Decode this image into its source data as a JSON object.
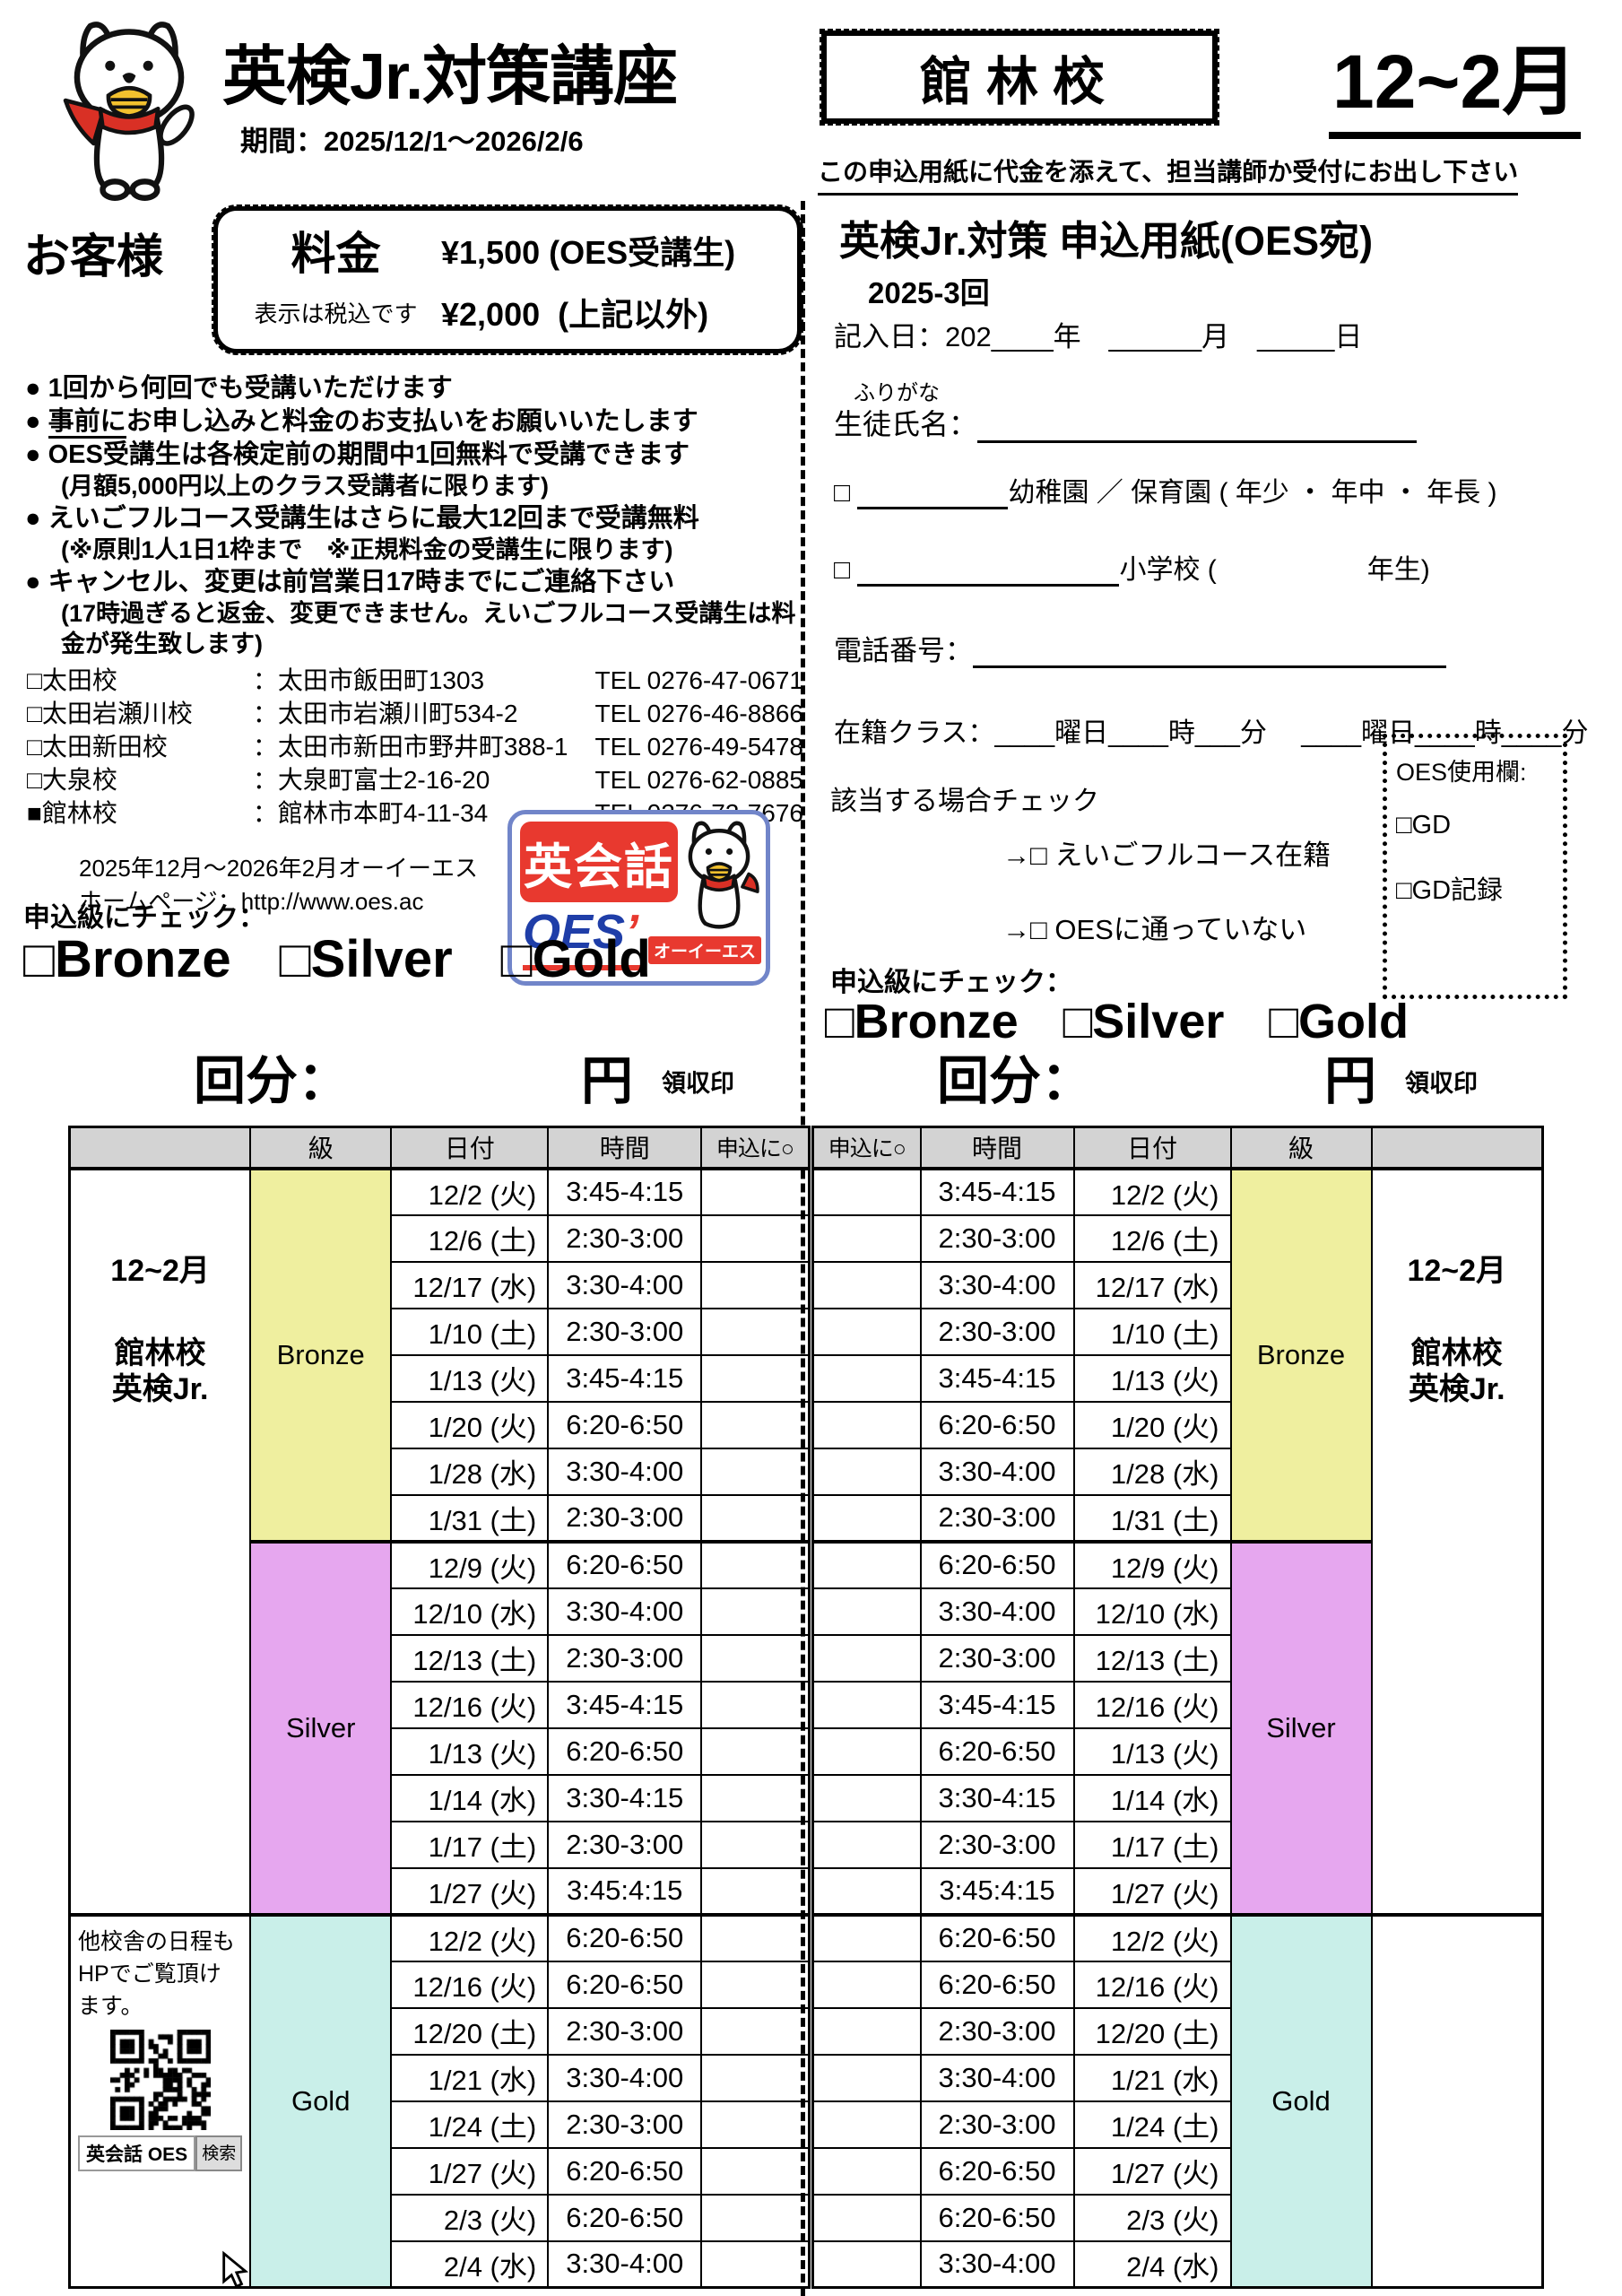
{
  "header": {
    "title": "英検Jr.対策講座",
    "period": "期間：2025/12/1～2026/2/6",
    "school_box": "館林校",
    "months": "12~2月",
    "instruction": "この申込用紙に代金を添えて、担当講師か受付にお出し下さい"
  },
  "customer": {
    "label": "お客様",
    "fee_box": {
      "title": "料金",
      "tax_note": "表示は税込です",
      "rows": [
        {
          "price": "¥1,500",
          "desc": "(OES受講生)"
        },
        {
          "price": "¥2,000",
          "desc": "(上記以外)"
        }
      ]
    },
    "bullet_char": "●",
    "bullets": [
      {
        "u": "",
        "main": "1回から何回でも受講いただけます",
        "sub": ""
      },
      {
        "u": "事前に",
        "main": "お申し込みと料金のお支払いをお願いいたします",
        "sub": ""
      },
      {
        "u": "",
        "main": "OES受講生は各検定前の期間中1回無料で受講できます",
        "sub": "(月額5,000円以上のクラス受講者に限ります)"
      },
      {
        "u": "",
        "main": "えいごフルコース受講生はさらに最大12回まで受講無料",
        "sub": "(※原則1人1日1枠まで　※正規料金の受講生に限ります)"
      },
      {
        "u": "",
        "main": "キャンセル、変更は前営業日17時までにご連絡下さい",
        "sub": "(17時過ぎると返金、変更できません。えいごフルコース受講生は料金が発生致します)"
      }
    ],
    "schools": [
      {
        "box": "□",
        "name": "太田校",
        "addr": "：太田市飯田町1303",
        "tel": "TEL 0276-47-0671"
      },
      {
        "box": "□",
        "name": "太田岩瀬川校",
        "addr": "：太田市岩瀬川町534-2",
        "tel": "TEL 0276-46-8866"
      },
      {
        "box": "□",
        "name": "太田新田校",
        "addr": "：太田市新田市野井町388-1",
        "tel": "TEL 0276-49-5478"
      },
      {
        "box": "□",
        "name": "大泉校",
        "addr": "：大泉町富士2-16-20",
        "tel": "TEL 0276-62-0885"
      },
      {
        "box": "■",
        "name": "館林校",
        "addr": "：館林市本町4-11-34",
        "tel": "TEL 0276-72-7676"
      }
    ],
    "footer_line1": "2025年12月～2026年2月オーイーエス",
    "footer_line2": "ホームページ：http://www.oes.ac",
    "logo": {
      "badge": "英会話",
      "brand": "OES",
      "brand_mark": "’",
      "strip": "オーイーエス"
    },
    "apply_label": "申込級にチェック：",
    "levels": [
      "□Bronze",
      "□Silver",
      "□Gold"
    ]
  },
  "form": {
    "title": "英検Jr.対策 申込用紙(OES宛)",
    "round": "2025-3回",
    "date_line": "記入日：202____年　______月　_____日",
    "furigana": "ふりがな",
    "name_label": "生徒氏名：",
    "kindergarten": {
      "box": "□",
      "label": "幼稚園 ／ 保育園 ( 年少 ・ 年中 ・ 年長 )"
    },
    "elementary": {
      "box": "□",
      "label": "小学校 (",
      "suffix": "年生)"
    },
    "phone_label": "電話番号：",
    "class_line": "在籍クラス：____曜日____時___分　 ____曜日____時____分",
    "applicable": "該当する場合チェック",
    "applicable_items": [
      "→□ えいごフルコース在籍",
      "→□ OESに通っていない"
    ],
    "oes_box": {
      "title": "OES使用欄:",
      "items": [
        "□GD",
        "□GD記録"
      ]
    },
    "apply_label": "申込級にチェック：",
    "levels": [
      "□Bronze",
      "□Silver",
      "□Gold"
    ]
  },
  "schedule": {
    "fee_line": {
      "label": "回分：",
      "unit": "円",
      "stamp": "領収印"
    },
    "headers": {
      "class": "級",
      "date": "日付",
      "time": "時間",
      "apply": "申込に○"
    },
    "side_label": [
      "12~2月",
      "館林校",
      "英検Jr."
    ],
    "gold_note": "他校舎の日程もHPでご覧頂けます。",
    "search": {
      "query": "英会話 OES",
      "button": "検索"
    },
    "sections": [
      {
        "name": "Bronze",
        "color": "#efef9f",
        "rows": [
          {
            "date": "12/2 (火)",
            "time": "3:45-4:15"
          },
          {
            "date": "12/6 (土)",
            "time": "2:30-3:00"
          },
          {
            "date": "12/17 (水)",
            "time": "3:30-4:00"
          },
          {
            "date": "1/10 (土)",
            "time": "2:30-3:00"
          },
          {
            "date": "1/13 (火)",
            "time": "3:45-4:15"
          },
          {
            "date": "1/20 (火)",
            "time": "6:20-6:50"
          },
          {
            "date": "1/28 (水)",
            "time": "3:30-4:00"
          },
          {
            "date": "1/31 (土)",
            "time": "2:30-3:00"
          }
        ]
      },
      {
        "name": "Silver",
        "color": "#e6a7ef",
        "rows": [
          {
            "date": "12/9 (火)",
            "time": "6:20-6:50"
          },
          {
            "date": "12/10 (水)",
            "time": "3:30-4:00"
          },
          {
            "date": "12/13 (土)",
            "time": "2:30-3:00"
          },
          {
            "date": "12/16 (火)",
            "time": "3:45-4:15"
          },
          {
            "date": "1/13 (火)",
            "time": "6:20-6:50"
          },
          {
            "date": "1/14 (水)",
            "time": "3:30-4:15"
          },
          {
            "date": "1/17 (土)",
            "time": "2:30-3:00"
          },
          {
            "date": "1/27 (火)",
            "time": "3:45:4:15"
          }
        ]
      },
      {
        "name": "Gold",
        "color": "#c9efe9",
        "rows": [
          {
            "date": "12/2 (火)",
            "time": "6:20-6:50"
          },
          {
            "date": "12/16 (火)",
            "time": "6:20-6:50"
          },
          {
            "date": "12/20 (土)",
            "time": "2:30-3:00"
          },
          {
            "date": "1/21 (水)",
            "time": "3:30-4:00"
          },
          {
            "date": "1/24 (土)",
            "time": "2:30-3:00"
          },
          {
            "date": "1/27 (火)",
            "time": "6:20-6:50"
          },
          {
            "date": "2/3 (火)",
            "time": "6:20-6:50"
          },
          {
            "date": "2/4 (水)",
            "time": "3:30-4:00"
          }
        ]
      }
    ]
  },
  "colors": {
    "logo_red": "#e8392f",
    "logo_blue": "#1f3ea8",
    "logo_border": "#7185c9",
    "table_header_gray": "#d3d3d3"
  }
}
